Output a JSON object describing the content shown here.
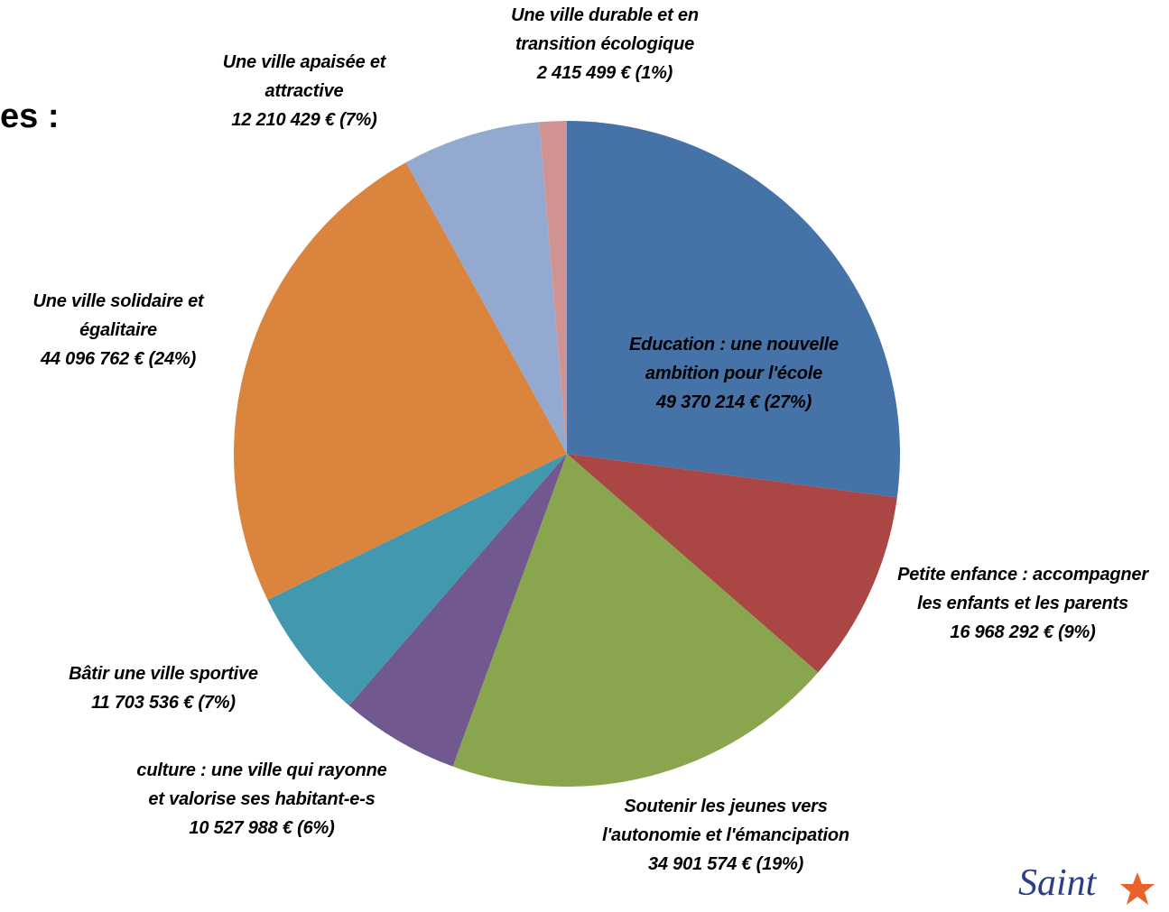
{
  "title": "es :",
  "logo": "Saint",
  "chart_data": {
    "type": "pie",
    "categories": [
      "Education : une nouvelle ambition pour l'école",
      "Petite enfance : accompagner les enfants et les parents",
      "Soutenir les jeunes vers l'autonomie et l'émancipation",
      "culture : une ville qui rayonne et valorise ses habitant-e-s",
      "Bâtir une ville sportive",
      "Une ville solidaire et égalitaire",
      "Une ville apaisée et attractive",
      "Une ville durable et en transition écologique"
    ],
    "values": [
      49370214,
      16968292,
      34901574,
      10527988,
      11703536,
      44096762,
      12210429,
      2415499
    ],
    "value_labels": [
      "49 370 214 € (27%)",
      "16 968 292 € (9%)",
      "34 901 574 € (19%)",
      "10 527 988 € (6%)",
      "11 703 536 € (7%)",
      "44 096 762 € (24%)",
      "12 210 429 € (7%)",
      "2 415 499 € (1%)"
    ],
    "colors": [
      "#4572a7",
      "#aa4643",
      "#89a54e",
      "#71588f",
      "#4198af",
      "#db843d",
      "#93a9cf",
      "#d19392"
    ]
  }
}
